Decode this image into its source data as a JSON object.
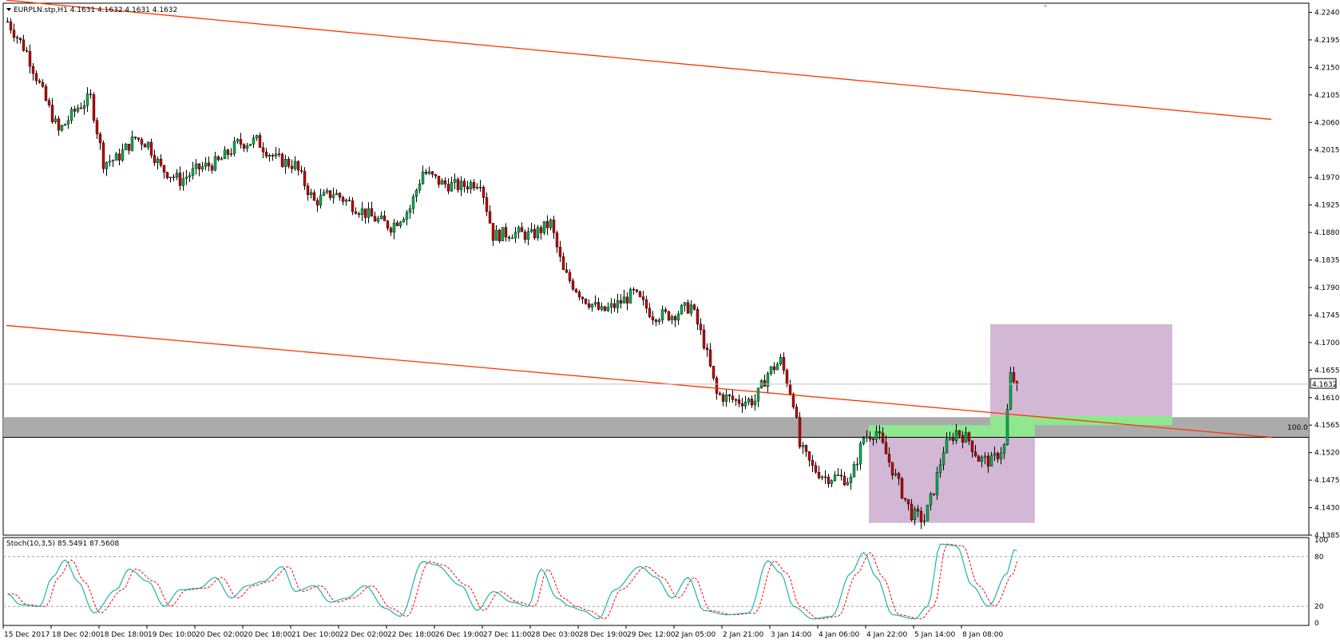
{
  "header": {
    "symbol_line": "EURPLN.stp,H1  4.1631 4.1632 4.1631 4.1632"
  },
  "indicator": {
    "label": "Stoch(10,3,5) 85.5491 87.5608",
    "levels": [
      "100",
      "80",
      "20",
      "0"
    ]
  },
  "price_tag": "4.1632",
  "fib_label": "100.0",
  "chart_data": {
    "type": "candlestick",
    "symbol": "EURPLN.stp",
    "timeframe": "H1",
    "y_ticks": [
      "4.2240",
      "4.2195",
      "4.2150",
      "4.2105",
      "4.2060",
      "4.2015",
      "4.1970",
      "4.1925",
      "4.1880",
      "4.1835",
      "4.1790",
      "4.1745",
      "4.1700",
      "4.1655",
      "4.1610",
      "4.1565",
      "4.1520",
      "4.1475",
      "4.1430",
      "4.1385"
    ],
    "ylim": [
      4.1385,
      4.2255
    ],
    "x_ticks": [
      "15 Dec 2017",
      "18 Dec 02:00",
      "18 Dec 18:00",
      "19 Dec 10:00",
      "20 Dec 02:00",
      "20 Dec 18:00",
      "21 Dec 10:00",
      "22 Dec 02:00",
      "22 Dec 18:00",
      "26 Dec 19:00",
      "27 Dec 11:00",
      "28 Dec 03:00",
      "28 Dec 19:00",
      "29 Dec 12:00",
      "2 Jan 05:00",
      "2 Jan 21:00",
      "3 Jan 14:00",
      "4 Jan 06:00",
      "4 Jan 22:00",
      "5 Jan 14:00",
      "8 Jan 08:00"
    ],
    "last_price": 4.1632,
    "close_path": [
      {
        "bar": 0,
        "price": 4.2225
      },
      {
        "bar": 6,
        "price": 4.2175
      },
      {
        "bar": 12,
        "price": 4.2095
      },
      {
        "bar": 16,
        "price": 4.2045
      },
      {
        "bar": 22,
        "price": 4.2085
      },
      {
        "bar": 26,
        "price": 4.21
      },
      {
        "bar": 30,
        "price": 4.1995
      },
      {
        "bar": 34,
        "price": 4.2
      },
      {
        "bar": 40,
        "price": 4.2035
      },
      {
        "bar": 44,
        "price": 4.2025
      },
      {
        "bar": 48,
        "price": 4.1985
      },
      {
        "bar": 54,
        "price": 4.1965
      },
      {
        "bar": 60,
        "price": 4.1985
      },
      {
        "bar": 66,
        "price": 4.1995
      },
      {
        "bar": 72,
        "price": 4.2025
      },
      {
        "bar": 78,
        "price": 4.203
      },
      {
        "bar": 84,
        "price": 4.2
      },
      {
        "bar": 90,
        "price": 4.199
      },
      {
        "bar": 96,
        "price": 4.193
      },
      {
        "bar": 102,
        "price": 4.1945
      },
      {
        "bar": 108,
        "price": 4.1925
      },
      {
        "bar": 114,
        "price": 4.1905
      },
      {
        "bar": 120,
        "price": 4.189
      },
      {
        "bar": 126,
        "price": 4.192
      },
      {
        "bar": 130,
        "price": 4.198
      },
      {
        "bar": 136,
        "price": 4.196
      },
      {
        "bar": 142,
        "price": 4.1955
      },
      {
        "bar": 148,
        "price": 4.1965
      },
      {
        "bar": 152,
        "price": 4.1875
      },
      {
        "bar": 158,
        "price": 4.188
      },
      {
        "bar": 164,
        "price": 4.1875
      },
      {
        "bar": 170,
        "price": 4.1895
      },
      {
        "bar": 174,
        "price": 4.1815
      },
      {
        "bar": 180,
        "price": 4.1775
      },
      {
        "bar": 186,
        "price": 4.175
      },
      {
        "bar": 190,
        "price": 4.176
      },
      {
        "bar": 196,
        "price": 4.178
      },
      {
        "bar": 202,
        "price": 4.1745
      },
      {
        "bar": 208,
        "price": 4.1745
      },
      {
        "bar": 214,
        "price": 4.176
      },
      {
        "bar": 218,
        "price": 4.17
      },
      {
        "bar": 222,
        "price": 4.1615
      },
      {
        "bar": 228,
        "price": 4.1605
      },
      {
        "bar": 234,
        "price": 4.1605
      },
      {
        "bar": 238,
        "price": 4.165
      },
      {
        "bar": 242,
        "price": 4.167
      },
      {
        "bar": 246,
        "price": 4.1605
      },
      {
        "bar": 248,
        "price": 4.153
      },
      {
        "bar": 252,
        "price": 4.1495
      },
      {
        "bar": 256,
        "price": 4.148
      },
      {
        "bar": 260,
        "price": 4.148
      },
      {
        "bar": 264,
        "price": 4.1475
      },
      {
        "bar": 268,
        "price": 4.1545
      },
      {
        "bar": 272,
        "price": 4.1555
      },
      {
        "bar": 276,
        "price": 4.1505
      },
      {
        "bar": 280,
        "price": 4.1455
      },
      {
        "bar": 283,
        "price": 4.142
      },
      {
        "bar": 287,
        "price": 4.141
      },
      {
        "bar": 290,
        "price": 4.146
      },
      {
        "bar": 293,
        "price": 4.1525
      },
      {
        "bar": 297,
        "price": 4.1555
      },
      {
        "bar": 301,
        "price": 4.154
      },
      {
        "bar": 304,
        "price": 4.151
      },
      {
        "bar": 308,
        "price": 4.1505
      },
      {
        "bar": 312,
        "price": 4.153
      },
      {
        "bar": 314,
        "price": 4.1645
      },
      {
        "bar": 316,
        "price": 4.1632
      }
    ],
    "total_bars": 317,
    "annotations": {
      "channel_upper": {
        "from": {
          "bar": 0,
          "price": 4.226
        },
        "to": {
          "bar": 396,
          "price": 4.2065
        }
      },
      "channel_lower": {
        "from": {
          "bar": 0,
          "price": 4.1728
        },
        "to": {
          "bar": 396,
          "price": 4.1545
        }
      },
      "support_zone": {
        "from_price": 4.1545,
        "to_price": 4.1578
      },
      "fib_level": {
        "price": 4.1545,
        "label": "100.0"
      },
      "box_lower": {
        "bar_from": 270,
        "bar_to": 322,
        "price_from": 4.1405,
        "price_to": 4.1565
      },
      "box_upper": {
        "bar_from": 308,
        "bar_to": 365,
        "price_from": 4.1565,
        "price_to": 4.173
      },
      "green_band_left": {
        "bar_from": 270,
        "bar_to": 322,
        "price_from": 4.1545,
        "price_to": 4.1565
      },
      "green_band_right": {
        "bar_from": 308,
        "bar_to": 365,
        "price_from": 4.1565,
        "price_to": 4.158
      }
    },
    "stochastic": {
      "params": "10,3,5",
      "main": 85.5491,
      "signal": 87.5608,
      "levels": [
        20,
        80
      ],
      "ylim": [
        0,
        100
      ],
      "path": [
        {
          "bar": 0,
          "value": 35
        },
        {
          "bar": 4,
          "value": 22
        },
        {
          "bar": 10,
          "value": 20
        },
        {
          "bar": 14,
          "value": 55
        },
        {
          "bar": 18,
          "value": 76
        },
        {
          "bar": 22,
          "value": 50
        },
        {
          "bar": 27,
          "value": 12
        },
        {
          "bar": 34,
          "value": 40
        },
        {
          "bar": 38,
          "value": 65
        },
        {
          "bar": 44,
          "value": 50
        },
        {
          "bar": 49,
          "value": 20
        },
        {
          "bar": 54,
          "value": 40
        },
        {
          "bar": 60,
          "value": 42
        },
        {
          "bar": 65,
          "value": 55
        },
        {
          "bar": 70,
          "value": 30
        },
        {
          "bar": 75,
          "value": 45
        },
        {
          "bar": 80,
          "value": 50
        },
        {
          "bar": 86,
          "value": 68
        },
        {
          "bar": 90,
          "value": 38
        },
        {
          "bar": 96,
          "value": 45
        },
        {
          "bar": 101,
          "value": 25
        },
        {
          "bar": 106,
          "value": 30
        },
        {
          "bar": 112,
          "value": 45
        },
        {
          "bar": 118,
          "value": 18
        },
        {
          "bar": 123,
          "value": 8
        },
        {
          "bar": 130,
          "value": 74
        },
        {
          "bar": 134,
          "value": 70
        },
        {
          "bar": 142,
          "value": 45
        },
        {
          "bar": 147,
          "value": 15
        },
        {
          "bar": 152,
          "value": 38
        },
        {
          "bar": 158,
          "value": 25
        },
        {
          "bar": 163,
          "value": 20
        },
        {
          "bar": 167,
          "value": 65
        },
        {
          "bar": 172,
          "value": 30
        },
        {
          "bar": 176,
          "value": 20
        },
        {
          "bar": 180,
          "value": 15
        },
        {
          "bar": 185,
          "value": 5
        },
        {
          "bar": 190,
          "value": 40
        },
        {
          "bar": 198,
          "value": 68
        },
        {
          "bar": 203,
          "value": 55
        },
        {
          "bar": 208,
          "value": 30
        },
        {
          "bar": 213,
          "value": 55
        },
        {
          "bar": 218,
          "value": 15
        },
        {
          "bar": 225,
          "value": 10
        },
        {
          "bar": 232,
          "value": 12
        },
        {
          "bar": 238,
          "value": 75
        },
        {
          "bar": 242,
          "value": 60
        },
        {
          "bar": 246,
          "value": 20
        },
        {
          "bar": 252,
          "value": 5
        },
        {
          "bar": 258,
          "value": 8
        },
        {
          "bar": 264,
          "value": 60
        },
        {
          "bar": 268,
          "value": 85
        },
        {
          "bar": 272,
          "value": 55
        },
        {
          "bar": 277,
          "value": 10
        },
        {
          "bar": 284,
          "value": 5
        },
        {
          "bar": 288,
          "value": 20
        },
        {
          "bar": 292,
          "value": 95
        },
        {
          "bar": 297,
          "value": 93
        },
        {
          "bar": 302,
          "value": 45
        },
        {
          "bar": 307,
          "value": 20
        },
        {
          "bar": 313,
          "value": 60
        },
        {
          "bar": 315,
          "value": 88
        },
        {
          "bar": 317,
          "value": 86
        }
      ]
    }
  },
  "colors": {
    "bull": "#00b050",
    "bear": "#c00000",
    "wick": "#000000",
    "channel": "#ff3300",
    "zone": "#a6a6a6",
    "box": "#d3b8d6",
    "green": "#8fe88f",
    "stoch_main": "#20b2aa",
    "stoch_signal": "#ff0000"
  }
}
